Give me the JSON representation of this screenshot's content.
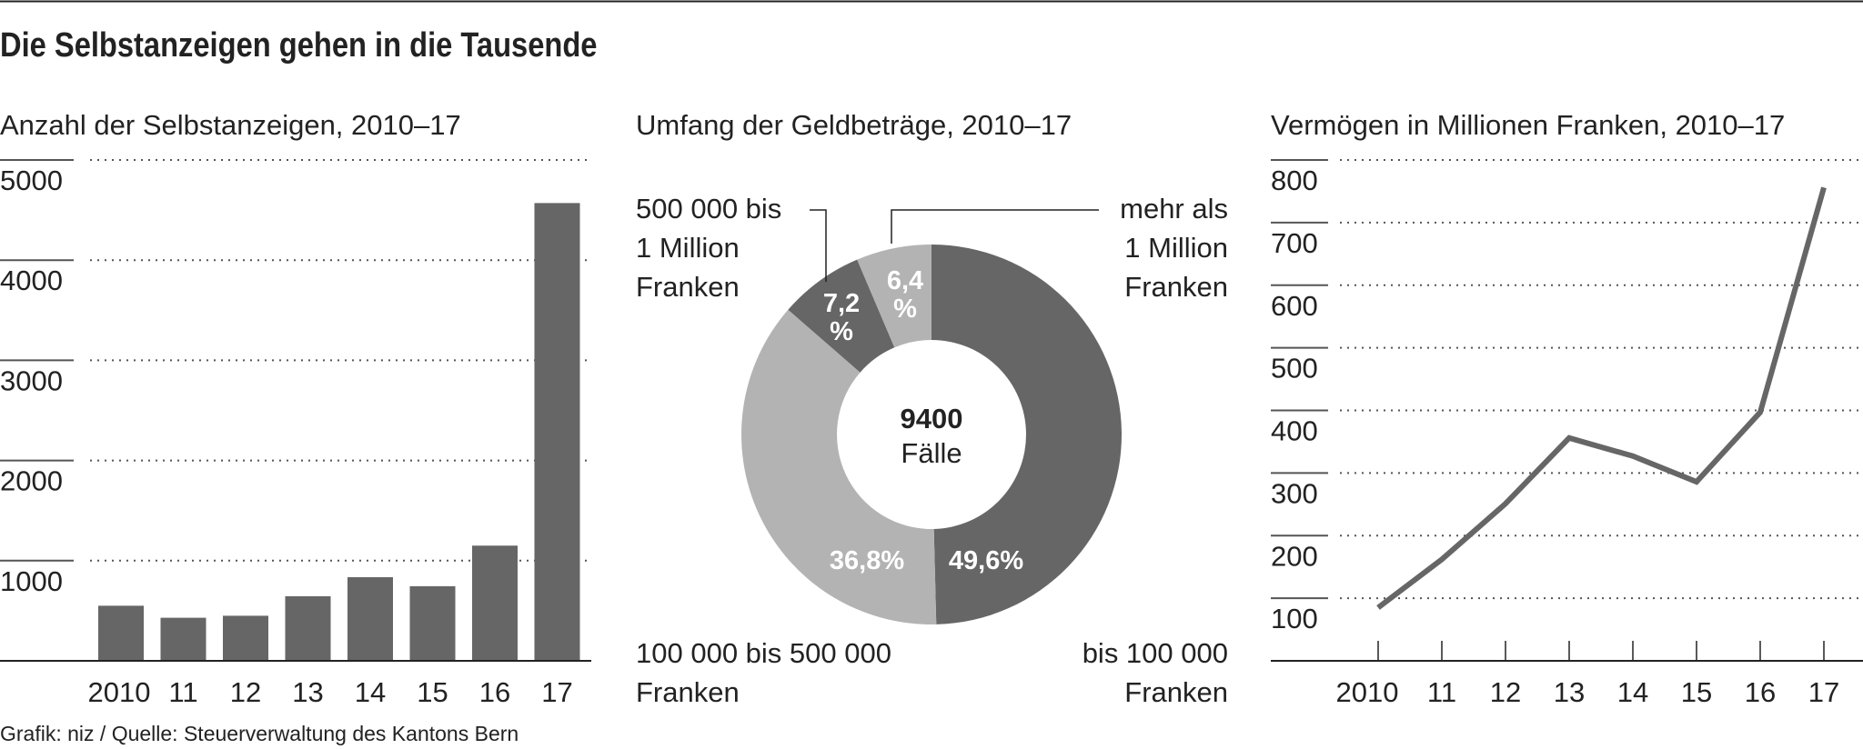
{
  "title": "Die Selbstanzeigen gehen in die Tausende",
  "footer": "Grafik: niz / Quelle: Steuerverwaltung des Kantons Bern",
  "colors": {
    "dark": "#666666",
    "light": "#b3b3b3",
    "text": "#222222",
    "grid": "#555555"
  },
  "chart_data": [
    {
      "type": "bar",
      "title": "Anzahl der Selbstanzeigen, 2010–17",
      "categories": [
        "2010",
        "11",
        "12",
        "13",
        "14",
        "15",
        "16",
        "17"
      ],
      "values": [
        550,
        430,
        450,
        645,
        835,
        745,
        1150,
        4570
      ],
      "yticks": [
        "1000",
        "2000",
        "3000",
        "4000",
        "5000"
      ],
      "ylim": [
        0,
        5000
      ],
      "grid": "dotted horizontal"
    },
    {
      "type": "pie",
      "title": "Umfang der Geldbeträge, 2010–17",
      "center_value": "9400",
      "center_label": "Fälle",
      "slices": [
        {
          "label": [
            "bis 100 000",
            "Franken"
          ],
          "value": 49.6,
          "pct_text": [
            "49,6%"
          ],
          "shade": "dark"
        },
        {
          "label": [
            "100 000 bis 500 000",
            "Franken"
          ],
          "value": 36.8,
          "pct_text": [
            "36,8%"
          ],
          "shade": "light"
        },
        {
          "label": [
            "500 000 bis",
            "1 Million",
            "Franken"
          ],
          "value": 7.2,
          "pct_text": [
            "7,2",
            "%"
          ],
          "shade": "dark"
        },
        {
          "label": [
            "mehr als",
            "1 Million",
            "Franken"
          ],
          "value": 6.4,
          "pct_text": [
            "6,4",
            "%"
          ],
          "shade": "light"
        }
      ]
    },
    {
      "type": "line",
      "title": "Vermögen in Millionen Franken, 2010–17",
      "categories": [
        "2010",
        "11",
        "12",
        "13",
        "14",
        "15",
        "16",
        "17"
      ],
      "values": [
        85,
        162,
        251,
        356,
        327,
        286,
        397,
        756
      ],
      "yticks": [
        "100",
        "200",
        "300",
        "400",
        "500",
        "600",
        "700",
        "800"
      ],
      "ylim": [
        0,
        800
      ],
      "grid": "dotted horizontal"
    }
  ]
}
